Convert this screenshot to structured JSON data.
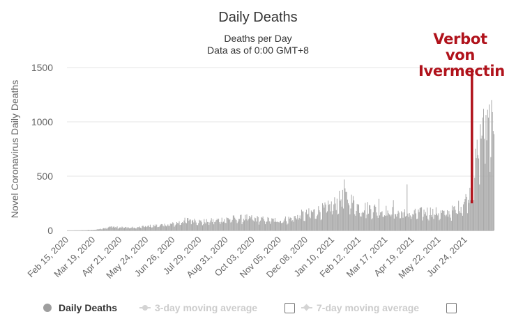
{
  "chart_data": {
    "type": "bar",
    "title": "Daily Deaths",
    "subtitle_lines": [
      "Deaths per Day",
      "Data as of 0:00 GMT+8"
    ],
    "ylabel": "Novel Coronavirus Daily Deaths",
    "xlabel": "",
    "ylim": [
      0,
      1500
    ],
    "yticks": [
      0,
      500,
      1000,
      1500
    ],
    "grid": true,
    "x_start_date": "2020-02-15",
    "xtick_labels": [
      "Feb 15, 2020",
      "Mar 19, 2020",
      "Apr 21, 2020",
      "May 24, 2020",
      "Jun 26, 2020",
      "Jul 29, 2020",
      "Aug 31, 2020",
      "Oct 03, 2020",
      "Nov 05, 2020",
      "Dec 08, 2020",
      "Jan 10, 2021",
      "Feb 12, 2021",
      "Mar 17, 2021",
      "Apr 19, 2021",
      "May 22, 2021",
      "Jun 24, 2021"
    ],
    "series": [
      {
        "name": "Daily Deaths",
        "color": "#a8a8a8",
        "points": [
          [
            "2020-02-15",
            0
          ],
          [
            "2020-03-01",
            1
          ],
          [
            "2020-03-19",
            6
          ],
          [
            "2020-04-01",
            18
          ],
          [
            "2020-04-10",
            40
          ],
          [
            "2020-04-21",
            30
          ],
          [
            "2020-05-01",
            28
          ],
          [
            "2020-05-10",
            25
          ],
          [
            "2020-05-24",
            40
          ],
          [
            "2020-06-05",
            45
          ],
          [
            "2020-06-15",
            50
          ],
          [
            "2020-06-26",
            60
          ],
          [
            "2020-07-10",
            90
          ],
          [
            "2020-07-20",
            105
          ],
          [
            "2020-07-29",
            80
          ],
          [
            "2020-08-10",
            85
          ],
          [
            "2020-08-20",
            95
          ],
          [
            "2020-08-31",
            105
          ],
          [
            "2020-09-15",
            110
          ],
          [
            "2020-09-25",
            115
          ],
          [
            "2020-10-03",
            110
          ],
          [
            "2020-10-15",
            100
          ],
          [
            "2020-10-25",
            95
          ],
          [
            "2020-11-05",
            95
          ],
          [
            "2020-11-20",
            110
          ],
          [
            "2020-12-01",
            145
          ],
          [
            "2020-12-08",
            150
          ],
          [
            "2020-12-20",
            175
          ],
          [
            "2021-01-01",
            200
          ],
          [
            "2021-01-10",
            230
          ],
          [
            "2021-01-20",
            290
          ],
          [
            "2021-01-28",
            300
          ],
          [
            "2021-02-05",
            250
          ],
          [
            "2021-02-12",
            210
          ],
          [
            "2021-02-25",
            205
          ],
          [
            "2021-03-05",
            195
          ],
          [
            "2021-03-17",
            180
          ],
          [
            "2021-03-25",
            170
          ],
          [
            "2021-04-05",
            160
          ],
          [
            "2021-04-19",
            150
          ],
          [
            "2021-04-30",
            165
          ],
          [
            "2021-05-10",
            175
          ],
          [
            "2021-05-22",
            160
          ],
          [
            "2021-06-01",
            160
          ],
          [
            "2021-06-10",
            185
          ],
          [
            "2021-06-18",
            230
          ],
          [
            "2021-06-24",
            280
          ],
          [
            "2021-06-30",
            380
          ],
          [
            "2021-07-05",
            530
          ],
          [
            "2021-07-10",
            760
          ],
          [
            "2021-07-15",
            920
          ],
          [
            "2021-07-20",
            1000
          ],
          [
            "2021-07-26",
            1070
          ]
        ],
        "peaks": [
          [
            "2021-01-24",
            470
          ],
          [
            "2021-04-12",
            425
          ],
          [
            "2021-03-08",
            290
          ],
          [
            "2021-03-26",
            280
          ],
          [
            "2021-07-15",
            1040
          ],
          [
            "2021-07-23",
            1160
          ],
          [
            "2021-07-26",
            1200
          ],
          [
            "2021-07-27",
            1090
          ]
        ]
      },
      {
        "name": "3-day moving average",
        "color": "#cccccc",
        "visible": false,
        "points": []
      },
      {
        "name": "7-day moving average",
        "color": "#cccccc",
        "visible": false,
        "points": []
      }
    ],
    "annotation": {
      "text": "Verbot von Ivermectin",
      "date": "2021-07-02",
      "color": "#b0121b"
    },
    "legend_position": "bottom"
  }
}
